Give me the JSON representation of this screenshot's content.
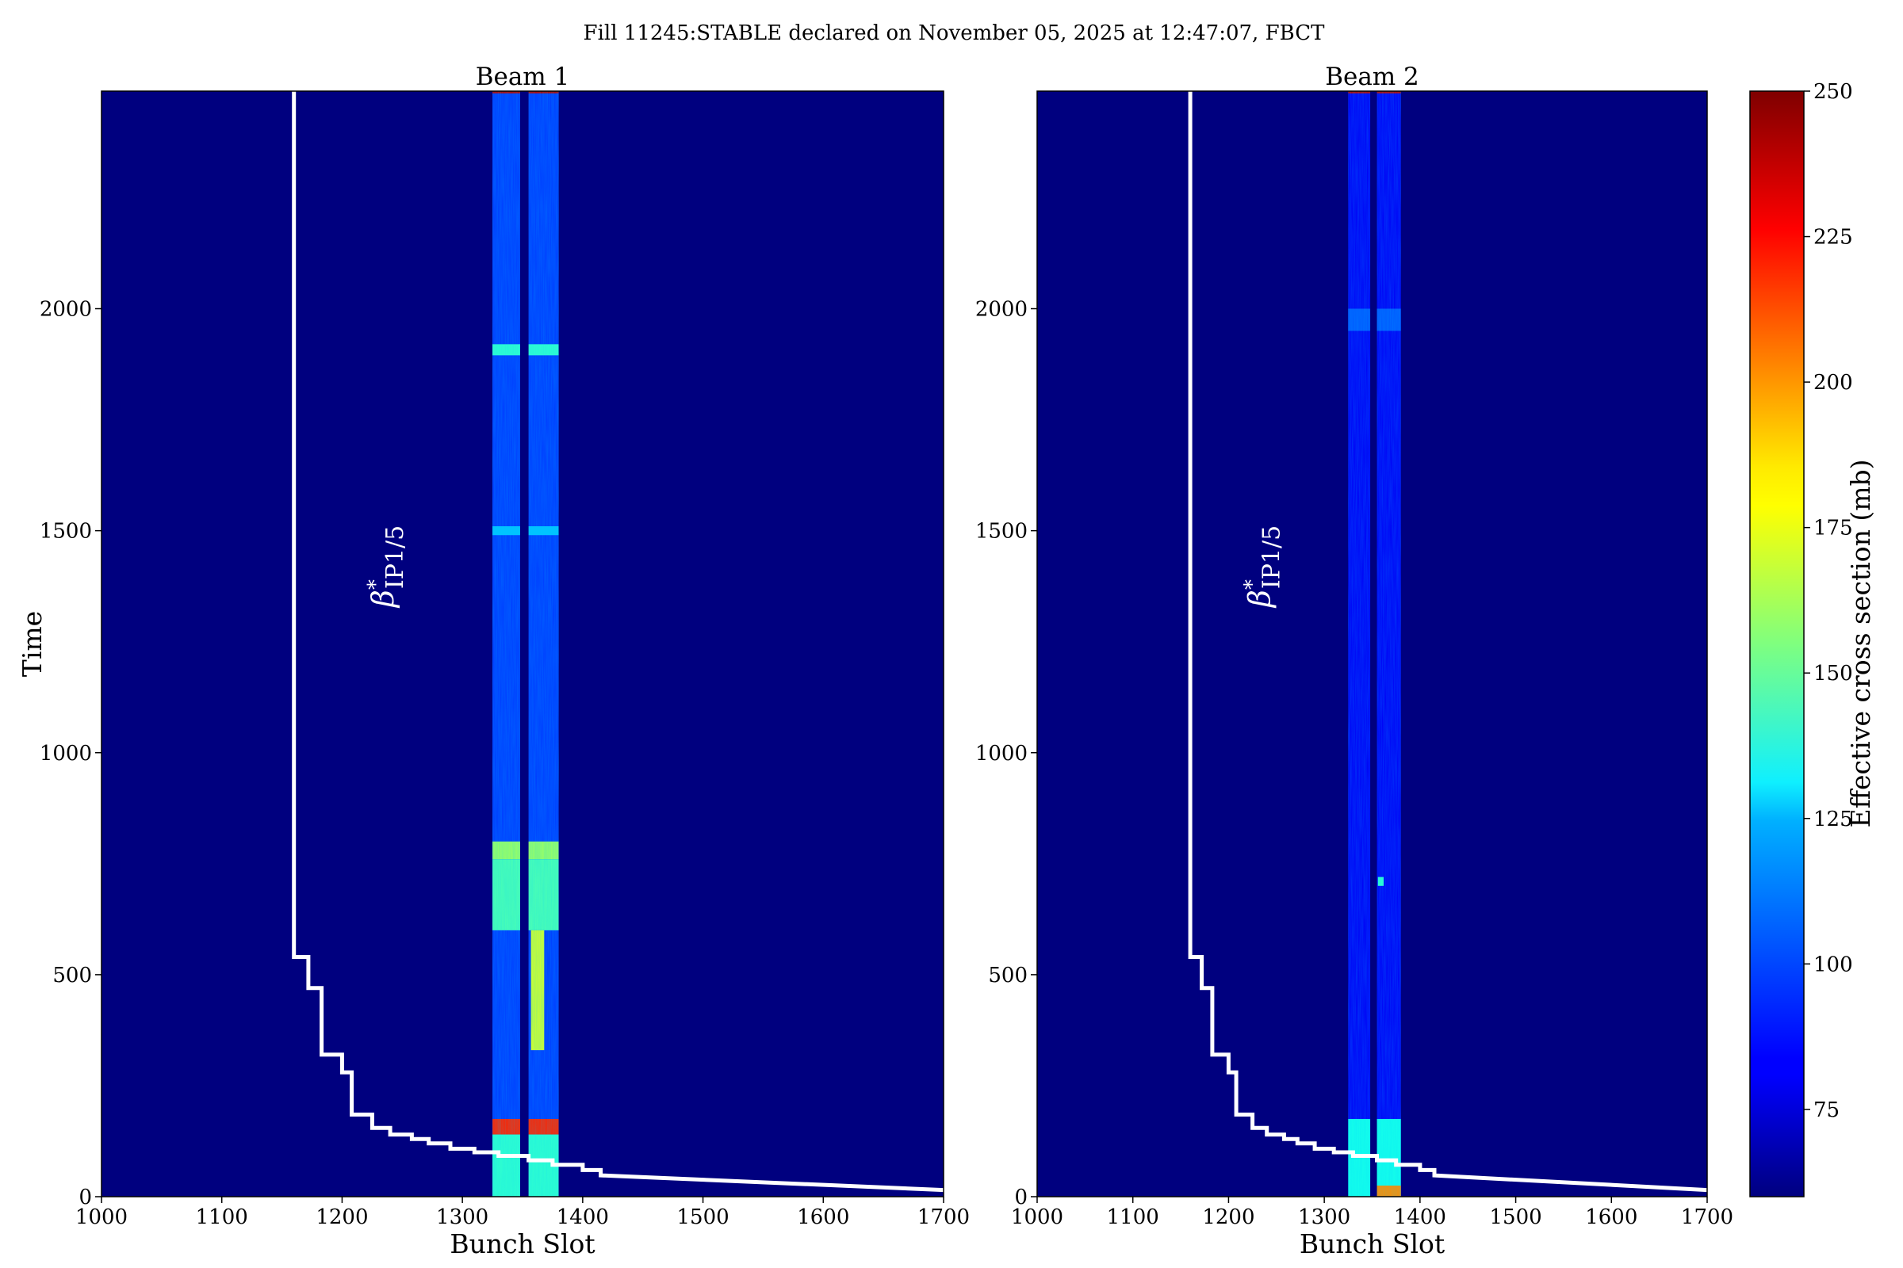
{
  "suptitle": "Fill 11245:STABLE declared on November 05, 2025 at 12:47:07, FBCT",
  "colorbar": {
    "label": "Effective cross section (mb)",
    "min": 60,
    "max": 250,
    "ticks": [
      75,
      100,
      125,
      150,
      175,
      200,
      225,
      250
    ],
    "colormap": "jet"
  },
  "colors": {
    "background": "#00007f",
    "beta_line": "#ffffff"
  },
  "chart_data": [
    {
      "type": "heatmap",
      "title": "Beam 1",
      "xlabel": "Bunch Slot",
      "ylabel": "Time",
      "xlim": [
        1000,
        1700
      ],
      "ylim": [
        0,
        2490
      ],
      "xticks": [
        1000,
        1100,
        1200,
        1300,
        1400,
        1500,
        1600,
        1700
      ],
      "yticks": [
        0,
        500,
        1000,
        1500,
        2000
      ],
      "occupied_slot_bands": [
        [
          1325,
          1348
        ],
        [
          1355,
          1380
        ]
      ],
      "annotation": {
        "symbol": "β",
        "sup": "*",
        "sub": "IP1/5"
      },
      "features": [
        {
          "slots": [
            1325,
            1380
          ],
          "time": [
            0,
            2490
          ],
          "value": 95
        },
        {
          "slots": [
            1325,
            1380
          ],
          "time": [
            2485,
            2490
          ],
          "value": 240
        },
        {
          "slots": [
            1325,
            1380
          ],
          "time": [
            1895,
            1920
          ],
          "value": 140
        },
        {
          "slots": [
            1325,
            1380
          ],
          "time": [
            1490,
            1510
          ],
          "value": 120
        },
        {
          "slots": [
            1325,
            1380
          ],
          "time": [
            760,
            800
          ],
          "value": 160
        },
        {
          "slots": [
            1325,
            1380
          ],
          "time": [
            600,
            760
          ],
          "value": 145
        },
        {
          "slots": [
            1325,
            1380
          ],
          "time": [
            140,
            175
          ],
          "value": 220
        },
        {
          "slots": [
            1325,
            1380
          ],
          "time": [
            0,
            140
          ],
          "value": 140
        },
        {
          "slots": [
            1357,
            1368
          ],
          "time": [
            330,
            600
          ],
          "value": 170
        }
      ],
      "beta_star_line": [
        [
          1160,
          2490
        ],
        [
          1160,
          540
        ],
        [
          1172,
          540
        ],
        [
          1172,
          470
        ],
        [
          1183,
          470
        ],
        [
          1183,
          320
        ],
        [
          1200,
          320
        ],
        [
          1200,
          280
        ],
        [
          1208,
          280
        ],
        [
          1208,
          185
        ],
        [
          1225,
          185
        ],
        [
          1225,
          155
        ],
        [
          1240,
          155
        ],
        [
          1240,
          140
        ],
        [
          1258,
          140
        ],
        [
          1258,
          130
        ],
        [
          1272,
          130
        ],
        [
          1272,
          120
        ],
        [
          1290,
          120
        ],
        [
          1290,
          108
        ],
        [
          1310,
          108
        ],
        [
          1310,
          100
        ],
        [
          1330,
          100
        ],
        [
          1330,
          92
        ],
        [
          1355,
          92
        ],
        [
          1355,
          82
        ],
        [
          1375,
          82
        ],
        [
          1375,
          72
        ],
        [
          1400,
          72
        ],
        [
          1400,
          60
        ],
        [
          1415,
          60
        ],
        [
          1415,
          48
        ],
        [
          1700,
          15
        ]
      ]
    },
    {
      "type": "heatmap",
      "title": "Beam 2",
      "xlabel": "Bunch Slot",
      "ylabel": "",
      "xlim": [
        1000,
        1700
      ],
      "ylim": [
        0,
        2490
      ],
      "xticks": [
        1000,
        1100,
        1200,
        1300,
        1400,
        1500,
        1600,
        1700
      ],
      "yticks": [
        0,
        500,
        1000,
        1500,
        2000
      ],
      "occupied_slot_bands": [
        [
          1325,
          1348
        ],
        [
          1355,
          1380
        ]
      ],
      "annotation": {
        "symbol": "β",
        "sup": "*",
        "sub": "IP1/5"
      },
      "features": [
        {
          "slots": [
            1325,
            1380
          ],
          "time": [
            0,
            2490
          ],
          "value": 82
        },
        {
          "slots": [
            1325,
            1380
          ],
          "time": [
            2485,
            2490
          ],
          "value": 240
        },
        {
          "slots": [
            1325,
            1380
          ],
          "time": [
            1950,
            2000
          ],
          "value": 100
        },
        {
          "slots": [
            1356,
            1362
          ],
          "time": [
            700,
            720
          ],
          "value": 140
        },
        {
          "slots": [
            1325,
            1380
          ],
          "time": [
            0,
            175
          ],
          "value": 135
        },
        {
          "slots": [
            1355,
            1380
          ],
          "time": [
            0,
            25
          ],
          "value": 200
        }
      ],
      "beta_star_line": [
        [
          1160,
          2490
        ],
        [
          1160,
          540
        ],
        [
          1172,
          540
        ],
        [
          1172,
          470
        ],
        [
          1183,
          470
        ],
        [
          1183,
          320
        ],
        [
          1200,
          320
        ],
        [
          1200,
          280
        ],
        [
          1208,
          280
        ],
        [
          1208,
          185
        ],
        [
          1225,
          185
        ],
        [
          1225,
          155
        ],
        [
          1240,
          155
        ],
        [
          1240,
          140
        ],
        [
          1258,
          140
        ],
        [
          1258,
          130
        ],
        [
          1272,
          130
        ],
        [
          1272,
          120
        ],
        [
          1290,
          120
        ],
        [
          1290,
          108
        ],
        [
          1310,
          108
        ],
        [
          1310,
          100
        ],
        [
          1330,
          100
        ],
        [
          1330,
          92
        ],
        [
          1355,
          92
        ],
        [
          1355,
          82
        ],
        [
          1375,
          82
        ],
        [
          1375,
          72
        ],
        [
          1400,
          72
        ],
        [
          1400,
          60
        ],
        [
          1415,
          60
        ],
        [
          1415,
          48
        ],
        [
          1700,
          15
        ]
      ]
    }
  ]
}
